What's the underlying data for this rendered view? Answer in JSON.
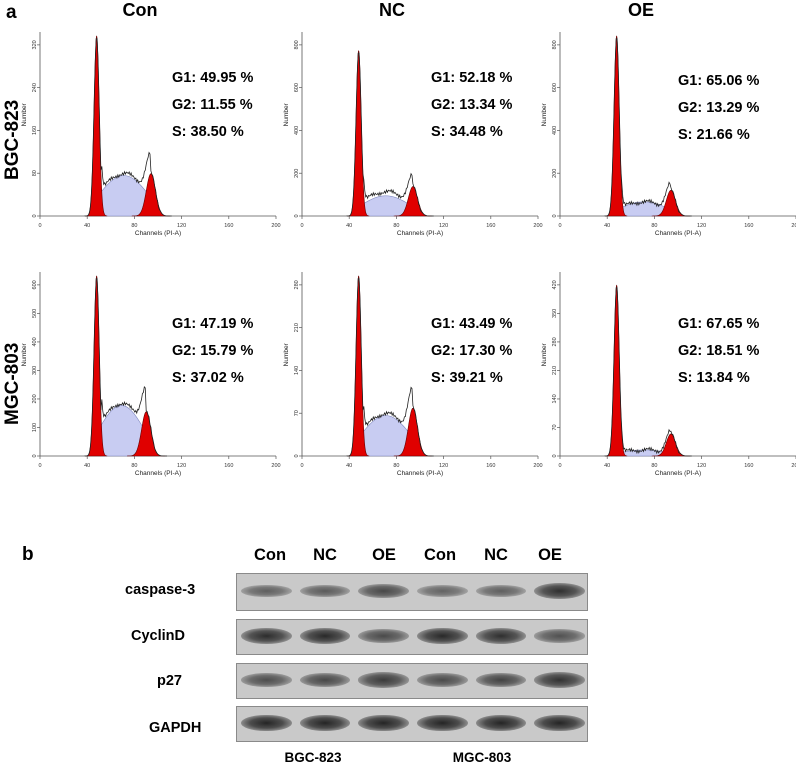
{
  "panel_a": {
    "letter": "a",
    "columns": [
      "Con",
      "NC",
      "OE"
    ],
    "rows": [
      "BGC-823",
      "MGC-803"
    ],
    "x_axis_label": "Channels (PI-A)",
    "y_axis_label": "Number",
    "x_ticks": [
      "0",
      "40",
      "80",
      "120",
      "160",
      "200"
    ],
    "y_ticks": [
      [
        "0",
        "80",
        "160",
        "240",
        "320"
      ],
      [
        "0",
        "200",
        "400",
        "600",
        "800"
      ],
      [
        "0",
        "200",
        "400",
        "600",
        "800"
      ],
      [
        "0",
        "100",
        "200",
        "300",
        "400",
        "500",
        "600"
      ],
      [
        "0",
        "70",
        "140",
        "210",
        "280"
      ],
      [
        "0",
        "70",
        "140",
        "210",
        "280",
        "350",
        "420"
      ]
    ],
    "stats": [
      {
        "g1": "G1: 49.95 %",
        "g2": "G2: 11.55 %",
        "s": "S: 38.50 %"
      },
      {
        "g1": "G1: 52.18 %",
        "g2": "G2: 13.34 %",
        "s": "S: 34.48 %"
      },
      {
        "g1": "G1: 65.06 %",
        "g2": "G2: 13.29 %",
        "s": "S: 21.66 %"
      },
      {
        "g1": "G1: 47.19 %",
        "g2": "G2: 15.79 %",
        "s": "S: 37.02 %"
      },
      {
        "g1": "G1: 43.49 %",
        "g2": "G2: 17.30 %",
        "s": "S: 39.21 %"
      },
      {
        "g1": "G1: 67.65 %",
        "g2": "G2: 18.51 %",
        "s": "S: 13.84 %"
      }
    ]
  },
  "panel_b": {
    "letter": "b",
    "lanes": [
      "Con",
      "NC",
      "OE",
      "Con",
      "NC",
      "OE"
    ],
    "proteins": [
      "caspase-3",
      "CyclinD",
      "p27",
      "GAPDH"
    ],
    "cell_lines": [
      "BGC-823",
      "MGC-803"
    ],
    "band_intensity": [
      [
        0.45,
        0.48,
        0.62,
        0.42,
        0.45,
        0.8
      ],
      [
        0.82,
        0.85,
        0.6,
        0.85,
        0.8,
        0.55
      ],
      [
        0.58,
        0.62,
        0.72,
        0.6,
        0.66,
        0.78
      ],
      [
        0.88,
        0.88,
        0.88,
        0.88,
        0.88,
        0.88
      ]
    ]
  },
  "colors": {
    "g1_peak": "#e00000",
    "s_phase_fill": "#c8ccf2",
    "band_dark": "#1a1a1a",
    "blot_bg": "#c9c9c9"
  }
}
